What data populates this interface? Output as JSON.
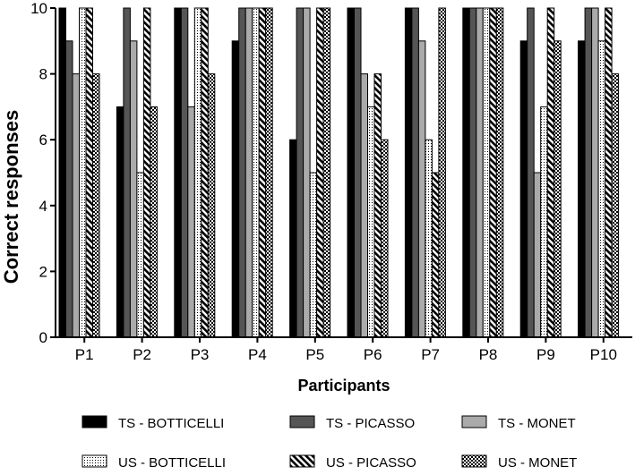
{
  "chart_data": {
    "type": "bar",
    "title": "",
    "xlabel": "Participants",
    "ylabel": "Correct responses",
    "ylim": [
      0,
      10
    ],
    "yticks": [
      0,
      2,
      4,
      6,
      8,
      10
    ],
    "categories": [
      "P1",
      "P2",
      "P3",
      "P4",
      "P5",
      "P6",
      "P7",
      "P8",
      "P9",
      "P10"
    ],
    "grid": false,
    "legend_position": "bottom",
    "series": [
      {
        "name": "TS - BOTTICELLI",
        "pattern": "solid-black",
        "color": "#000000",
        "values": [
          10,
          7,
          10,
          9,
          6,
          10,
          10,
          10,
          9,
          9
        ]
      },
      {
        "name": "TS - PICASSO",
        "pattern": "solid-dark-gray",
        "color": "#555555",
        "values": [
          9,
          10,
          10,
          10,
          10,
          10,
          10,
          10,
          10,
          10
        ]
      },
      {
        "name": "TS - MONET",
        "pattern": "solid-light-gray",
        "color": "#aaaaaa",
        "values": [
          8,
          9,
          7,
          10,
          10,
          8,
          9,
          10,
          5,
          10
        ]
      },
      {
        "name": "US - BOTTICELLI",
        "pattern": "dots",
        "color": "#ffffff",
        "values": [
          10,
          5,
          10,
          10,
          5,
          7,
          6,
          10,
          7,
          9
        ]
      },
      {
        "name": "US - PICASSO",
        "pattern": "diagonal-stripes",
        "color": "#ffffff",
        "values": [
          10,
          10,
          10,
          10,
          10,
          8,
          5,
          10,
          10,
          10
        ]
      },
      {
        "name": "US - MONET",
        "pattern": "checker",
        "color": "#000000",
        "values": [
          8,
          7,
          8,
          10,
          10,
          6,
          10,
          10,
          9,
          8
        ]
      }
    ]
  }
}
